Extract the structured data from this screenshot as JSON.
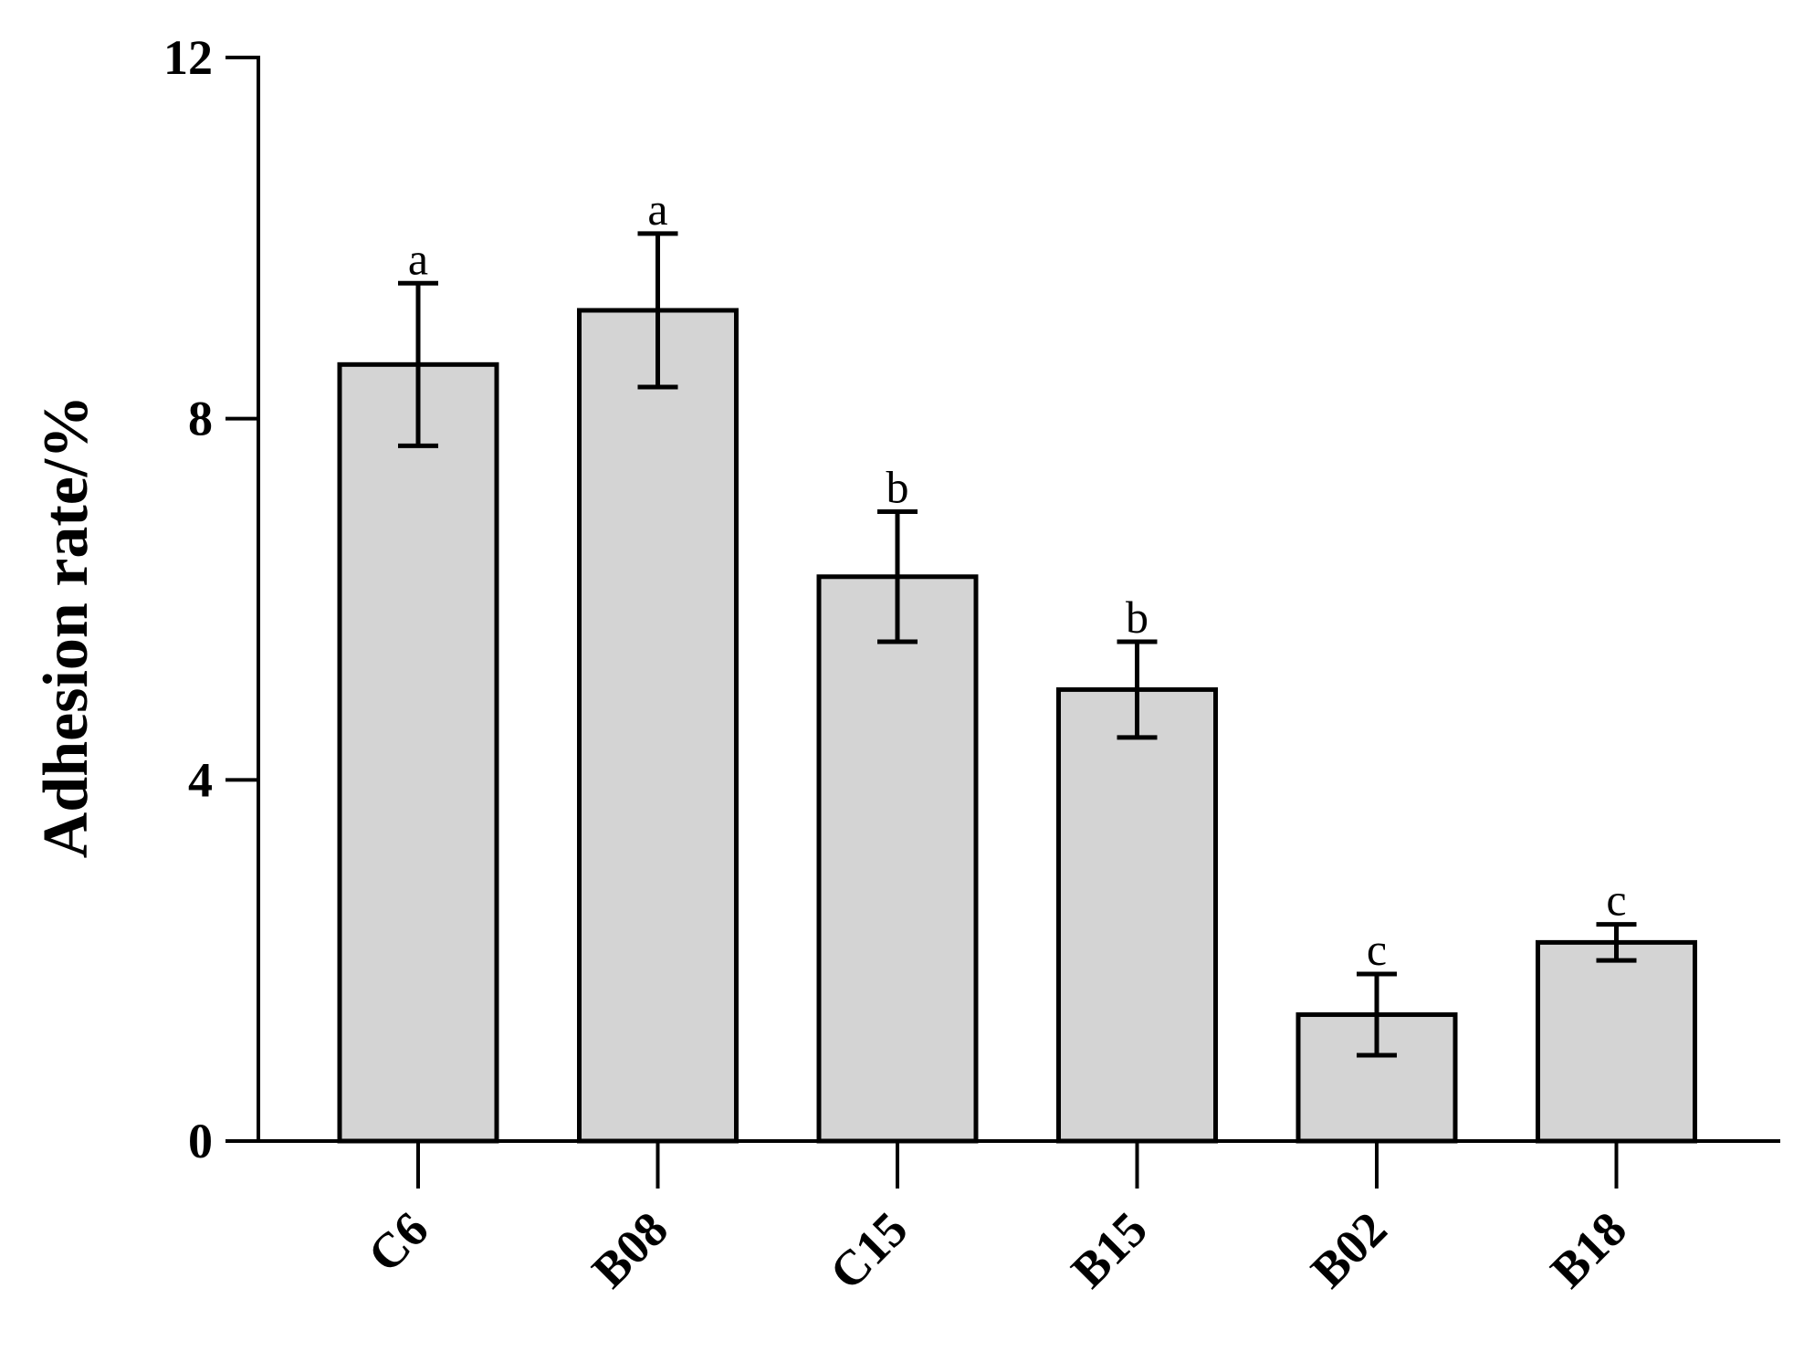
{
  "chart_data": {
    "type": "bar",
    "title": "",
    "xlabel": "",
    "ylabel": "Adhesion rate/%",
    "ylim": [
      0,
      12
    ],
    "yticks": [
      "0",
      "4",
      "8",
      "12"
    ],
    "categories": [
      "C6",
      "B08",
      "C15",
      "B15",
      "B02",
      "B18"
    ],
    "values": [
      8.6,
      9.2,
      6.25,
      5.0,
      1.4,
      2.2
    ],
    "errors": [
      0.9,
      0.85,
      0.72,
      0.53,
      0.45,
      0.2
    ],
    "significance_letters": [
      "a",
      "a",
      "b",
      "b",
      "c",
      "c"
    ],
    "grid": false,
    "legend": "none",
    "bar_color": "#d4d4d4",
    "edge_color": "#000000"
  }
}
